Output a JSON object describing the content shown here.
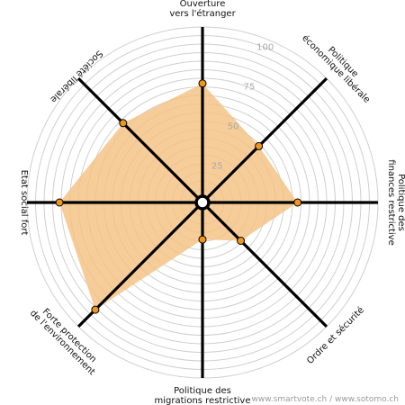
{
  "chart_data": {
    "type": "radar",
    "axes": [
      {
        "label": [
          "Ouverture",
          "vers l'étranger"
        ],
        "value": 67
      },
      {
        "label": [
          "Politique",
          "économique libérale"
        ],
        "value": 44
      },
      {
        "label": [
          "Politique des",
          "finances restrictive"
        ],
        "value": 53
      },
      {
        "label": [
          "Ordre et sécurité"
        ],
        "value": 29
      },
      {
        "label": [
          "Politique des",
          "migrations restrictive"
        ],
        "value": 19
      },
      {
        "label": [
          "Forte protection",
          "de l'environnement"
        ],
        "value": 86
      },
      {
        "label": [
          "Etat social fort"
        ],
        "value": 81
      },
      {
        "label": [
          "Société libérale"
        ],
        "value": 63
      }
    ],
    "ring_labels": [
      "25",
      "50",
      "75",
      "100"
    ],
    "range": [
      0,
      100
    ],
    "colors": {
      "fill": "#f4c283",
      "point": "#f0961e",
      "axis": "#000000",
      "ring": "#cfcfcf"
    }
  },
  "footer": {
    "credit": "www.smartvote.ch / www.sotomo.ch"
  }
}
